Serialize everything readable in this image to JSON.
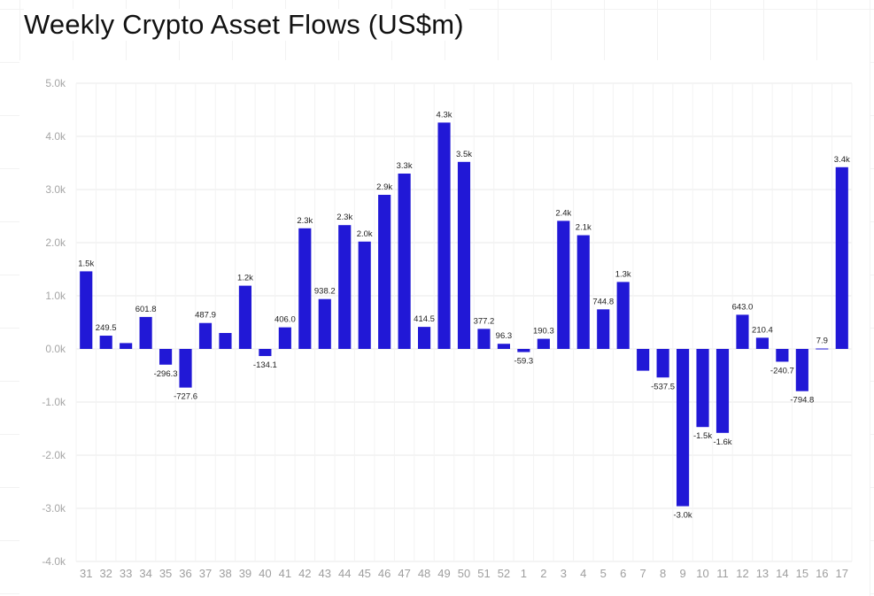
{
  "title": "Weekly Crypto Asset Flows (US$m)",
  "colors": {
    "bar": "#2118d6",
    "grid": "#e9e9e9"
  },
  "chart_data": {
    "type": "bar",
    "title": "Weekly Crypto Asset Flows (US$m)",
    "xlabel": "",
    "ylabel": "",
    "ylim": [
      -4000,
      5000
    ],
    "yticks": [
      5000,
      4000,
      3000,
      2000,
      1000,
      0,
      -1000,
      -2000,
      -3000,
      -4000
    ],
    "ytick_labels": [
      "5.0k",
      "4.0k",
      "3.0k",
      "2.0k",
      "1.0k",
      "0.0k",
      "-1.0k",
      "-2.0k",
      "-3.0k",
      "-4.0k"
    ],
    "grid": true,
    "categories": [
      "31",
      "32",
      "33",
      "34",
      "35",
      "36",
      "37",
      "38",
      "39",
      "40",
      "41",
      "42",
      "43",
      "44",
      "45",
      "46",
      "47",
      "48",
      "49",
      "50",
      "51",
      "52",
      "1",
      "2",
      "3",
      "4",
      "5",
      "6",
      "7",
      "8",
      "9",
      "10",
      "11",
      "12",
      "13",
      "14",
      "15",
      "16",
      "17"
    ],
    "values": [
      1460,
      249.5,
      110,
      601.8,
      -296.3,
      -727.6,
      487.9,
      300,
      1190,
      -134.1,
      406.0,
      2270,
      938.2,
      2330,
      2020,
      2900,
      3300,
      414.5,
      4260,
      3520,
      377.2,
      96.3,
      -59.3,
      190.3,
      2410,
      2140,
      744.8,
      1260,
      -410,
      -537.5,
      -2960,
      -1470,
      -1580,
      643.0,
      210.4,
      -240.7,
      -794.8,
      7.9,
      3420
    ],
    "data_labels": [
      "1.5k",
      "249.5",
      "",
      "601.8",
      "-296.3",
      "-727.6",
      "487.9",
      "",
      "1.2k",
      "-134.1",
      "406.0",
      "2.3k",
      "938.2",
      "2.3k",
      "2.0k",
      "2.9k",
      "3.3k",
      "414.5",
      "4.3k",
      "3.5k",
      "377.2",
      "96.3",
      "-59.3",
      "190.3",
      "2.4k",
      "2.1k",
      "744.8",
      "1.3k",
      "",
      "-537.5",
      "-3.0k",
      "-1.5k",
      "-1.6k",
      "643.0",
      "210.4",
      "-240.7",
      "-794.8",
      "7.9",
      "3.4k"
    ]
  }
}
